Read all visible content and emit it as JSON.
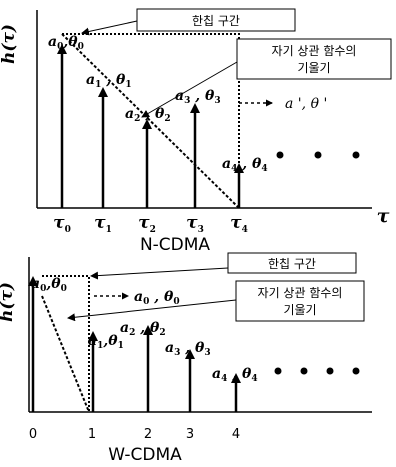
{
  "top": {
    "y_axis_label": "h(τ)",
    "x_axis_label": "τ",
    "callout_overlap": "한칩 구간",
    "callout_slope": [
      "자기 상관 함수의",
      "기울기"
    ],
    "legend": {
      "a": "a '",
      "theta": "θ '"
    },
    "ticks": [
      {
        "base": "τ",
        "sub": "0"
      },
      {
        "base": "τ",
        "sub": "1"
      },
      {
        "base": "τ",
        "sub": "2"
      },
      {
        "base": "τ",
        "sub": "3"
      },
      {
        "base": "τ",
        "sub": "4"
      }
    ],
    "arrows": [
      {
        "a": "a",
        "sub": "0",
        "theta": "θ",
        "tsub": "0"
      },
      {
        "a": "a",
        "sub": "1",
        "theta": "θ",
        "tsub": "1"
      },
      {
        "a": "a",
        "sub": "2",
        "theta": "θ",
        "tsub": "2"
      },
      {
        "a": "a",
        "sub": "3",
        "theta": "θ",
        "tsub": "3"
      },
      {
        "a": "a",
        "sub": "4",
        "theta": "θ",
        "tsub": "4"
      }
    ],
    "caption": "N-CDMA"
  },
  "bottom": {
    "y_axis_label": "h(τ)",
    "callout_overlap": "한칩 구간",
    "callout_slope": [
      "자기 상관 함수의",
      "기울기"
    ],
    "legend": {
      "a": "a",
      "sub": "0",
      "theta": "θ",
      "tsub": "0"
    },
    "ticks": [
      "0",
      "1",
      "2",
      "3",
      "4"
    ],
    "arrows": [
      {
        "a": "a",
        "sub": "0",
        "theta": "θ",
        "tsub": "0"
      },
      {
        "a": "a",
        "sub": "1",
        "theta": "θ",
        "tsub": "1"
      },
      {
        "a": "a",
        "sub": "2",
        "theta": "θ",
        "tsub": "2"
      },
      {
        "a": "a",
        "sub": "3",
        "theta": "θ",
        "tsub": "3"
      },
      {
        "a": "a",
        "sub": "4",
        "theta": "θ",
        "tsub": "4"
      }
    ],
    "caption": "W-CDMA"
  }
}
